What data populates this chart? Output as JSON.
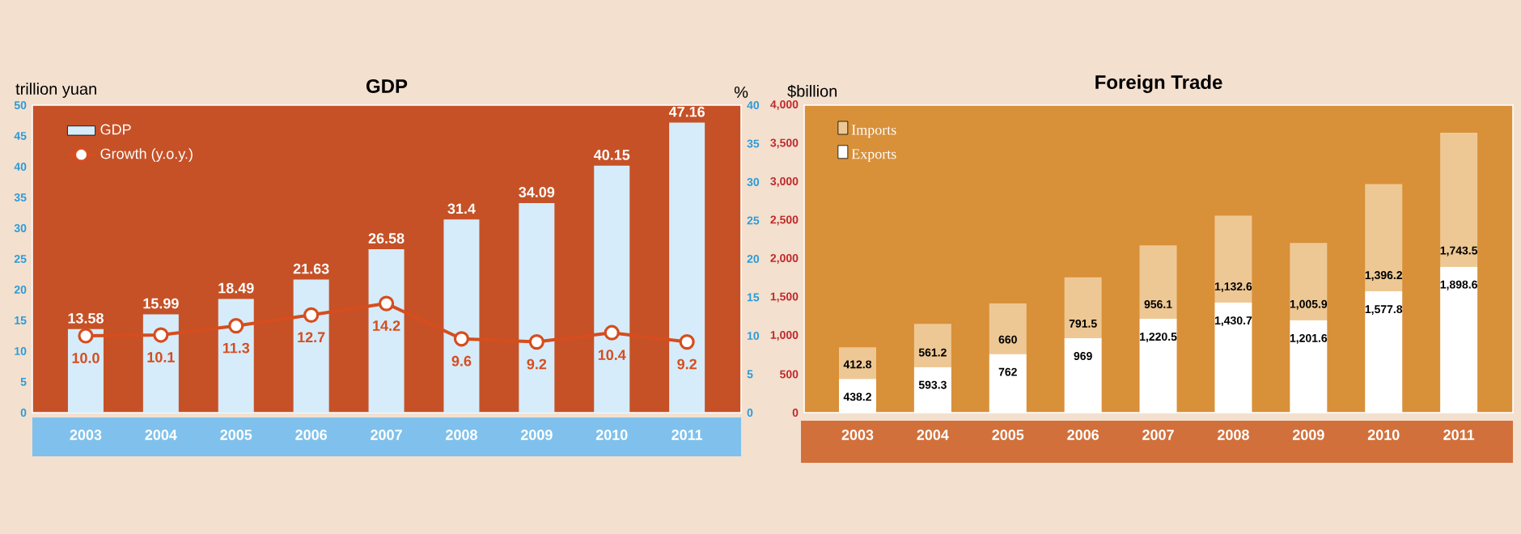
{
  "chart_data": [
    {
      "type": "bar",
      "title": "GDP",
      "ylabel": "trillion yuan",
      "y2label": "%",
      "categories": [
        "2003",
        "2004",
        "2005",
        "2006",
        "2007",
        "2008",
        "2009",
        "2010",
        "2011"
      ],
      "ylim": [
        0,
        50
      ],
      "yticks": [
        0,
        5,
        10,
        15,
        20,
        25,
        30,
        35,
        40,
        45,
        50
      ],
      "y2lim": [
        0,
        40
      ],
      "y2ticks": [
        0,
        5,
        10,
        15,
        20,
        25,
        30,
        35,
        40
      ],
      "data_labels": true,
      "legend": "top left",
      "series": [
        {
          "name": "GDP",
          "color": "#d6ecfa",
          "values": [
            13.58,
            15.99,
            18.49,
            21.63,
            26.58,
            31.4,
            34.09,
            40.15,
            47.16
          ]
        },
        {
          "name": "Growth (y.o.y.)",
          "type": "line",
          "axis": "y2",
          "marker": "circle",
          "color": "#d64d1e",
          "values": [
            10.0,
            10.1,
            11.3,
            12.7,
            14.2,
            9.6,
            9.2,
            10.4,
            9.2
          ],
          "value_labels": [
            "10.0",
            "10.1",
            "11.3",
            "12.7",
            "14.2",
            "9.6",
            "9.2",
            "10.4",
            "9.2"
          ]
        }
      ]
    },
    {
      "type": "bar",
      "stacked": true,
      "title": "Foreign Trade",
      "ylabel": "$billion",
      "categories": [
        "2003",
        "2004",
        "2005",
        "2006",
        "2007",
        "2008",
        "2009",
        "2010",
        "2011"
      ],
      "ylim": [
        0,
        4000
      ],
      "yticks": [
        0,
        500,
        {
          "value": 1000,
          "label": "1,000"
        },
        {
          "value": 1500,
          "label": "1,500"
        },
        {
          "value": 2000,
          "label": "2,000"
        },
        {
          "value": 2500,
          "label": "2,500"
        },
        {
          "value": 3000,
          "label": "3,000"
        },
        {
          "value": 3500,
          "label": "3,500"
        },
        {
          "value": 4000,
          "label": "4,000"
        }
      ],
      "legend": "top left",
      "series": [
        {
          "name": "Exports",
          "color": "#ffffff",
          "values": [
            438.2,
            593.3,
            762,
            969,
            1220.5,
            1430.7,
            1201.6,
            1577.8,
            1898.6
          ],
          "value_labels": [
            "438.2",
            "593.3",
            "762",
            "969",
            "1,220.5",
            "1,430.7",
            "1,201.6",
            "1,577.8",
            "1,898.6"
          ]
        },
        {
          "name": "Imports",
          "color": "#eec894",
          "values": [
            412.8,
            561.2,
            660,
            791.5,
            956.1,
            1132.6,
            1005.9,
            1396.2,
            1743.5
          ],
          "value_labels": [
            "412.8",
            "561.2",
            "660",
            "791.5",
            "956.1",
            "1,132.6",
            "1,005.9",
            "1,396.2",
            "1,743.5"
          ]
        }
      ]
    }
  ]
}
